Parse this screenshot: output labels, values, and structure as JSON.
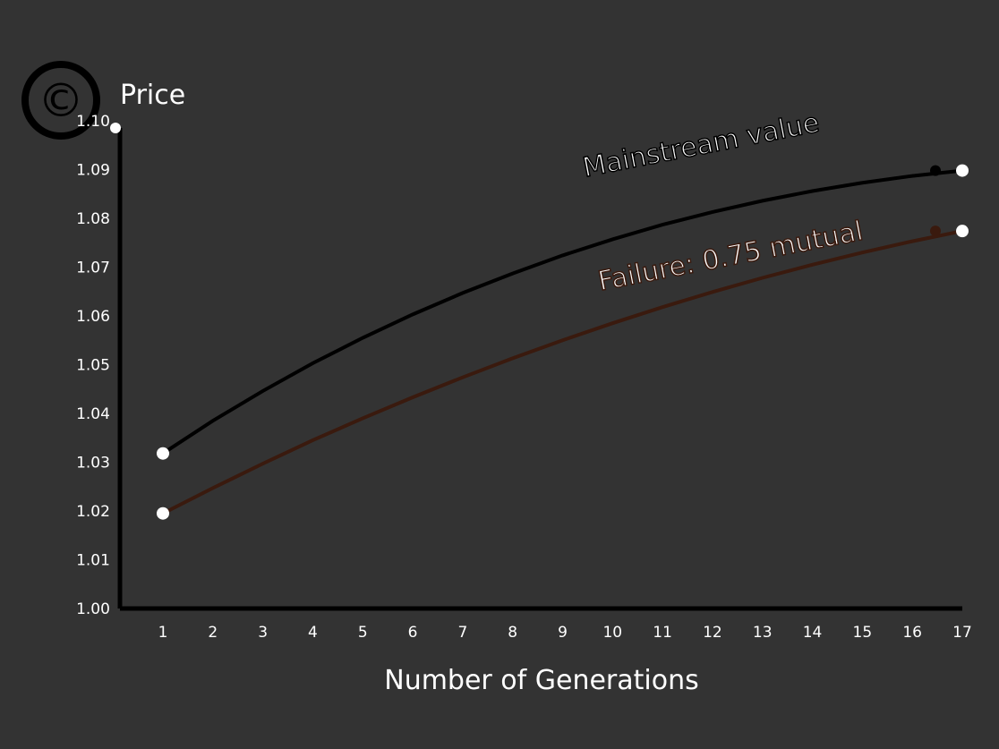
{
  "chart_data": {
    "type": "line",
    "title": "",
    "xlabel": "Number of Generations",
    "ylabel": "Price",
    "x": [
      1,
      2,
      3,
      4,
      5,
      6,
      7,
      8,
      9,
      10,
      11,
      12,
      13,
      14,
      15,
      16,
      17
    ],
    "xticks": [
      "1",
      "2",
      "3",
      "4",
      "5",
      "6",
      "7",
      "8",
      "9",
      "10",
      "11",
      "12",
      "13",
      "14",
      "15",
      "16",
      "17"
    ],
    "ylim": [
      1.0,
      1.1
    ],
    "yticks": [
      "1.00",
      "1.01",
      "1.02",
      "1.03",
      "1.04",
      "1.05",
      "1.06",
      "1.07",
      "1.08",
      "1.09",
      "1.10"
    ],
    "series": [
      {
        "annotation": "Mainstream value",
        "color": "#000000",
        "endpoint_color": "#ffffff",
        "values": [
          1.0318,
          1.0385,
          1.0446,
          1.0503,
          1.0555,
          1.0603,
          1.0647,
          1.0687,
          1.0724,
          1.0757,
          1.0787,
          1.0813,
          1.0836,
          1.0856,
          1.0873,
          1.0887,
          1.0898
        ]
      },
      {
        "annotation": "Failure: 0.75 mutual",
        "color": "#3a1a0e",
        "endpoint_color": "#ffffff",
        "values": [
          1.0195,
          1.0247,
          1.0297,
          1.0345,
          1.039,
          1.0433,
          1.0474,
          1.0513,
          1.055,
          1.0585,
          1.0618,
          1.0649,
          1.0678,
          1.0705,
          1.073,
          1.0753,
          1.0774
        ]
      }
    ],
    "grid": false,
    "legend": "none"
  },
  "badge": {
    "icon": "copyright-icon",
    "text": "©"
  }
}
